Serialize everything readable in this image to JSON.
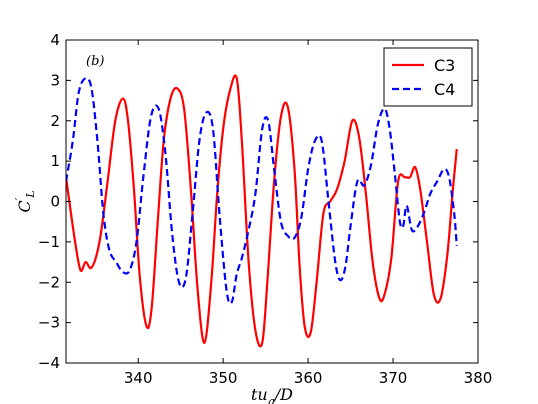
{
  "chart_data": {
    "type": "line",
    "panel_label": "(b)",
    "xlabel": "tu_g/D",
    "ylabel": "C'_L",
    "xlim": [
      331.5,
      380
    ],
    "ylim": [
      -4,
      4
    ],
    "xticks": [
      340,
      350,
      360,
      370,
      380
    ],
    "yticks": [
      -4,
      -3,
      -2,
      -1,
      0,
      1,
      2,
      3,
      4
    ],
    "grid": false,
    "legend": "top-right",
    "series": [
      {
        "name": "C3",
        "color": "#ff0000",
        "style": "solid",
        "x": [
          331.5,
          332.5,
          333.2,
          333.8,
          334.4,
          335.0,
          335.6,
          336.4,
          337.3,
          338.2,
          338.8,
          339.5,
          340.2,
          341.0,
          341.6,
          342.3,
          343.0,
          343.8,
          344.6,
          345.4,
          346.2,
          347.0,
          347.8,
          348.6,
          349.3,
          350.0,
          350.8,
          351.6,
          352.2,
          353.0,
          353.8,
          354.6,
          355.2,
          356.0,
          356.8,
          357.6,
          358.4,
          359.0,
          359.6,
          360.3,
          361.0,
          361.8,
          362.6,
          363.4,
          364.3,
          365.2,
          366.0,
          366.8,
          367.6,
          368.4,
          369.0,
          369.8,
          370.6,
          371.4,
          372.0,
          372.6,
          373.2,
          374.0,
          374.8,
          375.6,
          376.4,
          377.0,
          377.5
        ],
        "y": [
          0.6,
          -0.9,
          -1.7,
          -1.5,
          -1.65,
          -1.4,
          -0.8,
          0.5,
          2.0,
          2.55,
          2.0,
          0.3,
          -1.9,
          -3.1,
          -2.6,
          -0.5,
          1.5,
          2.55,
          2.8,
          2.3,
          0.3,
          -2.2,
          -3.5,
          -2.0,
          0.2,
          1.8,
          2.75,
          3.05,
          1.5,
          -1.5,
          -3.2,
          -3.5,
          -2.0,
          0.5,
          2.1,
          2.35,
          0.8,
          -1.6,
          -3.1,
          -3.25,
          -2.0,
          -0.3,
          0.0,
          0.3,
          1.0,
          2.0,
          1.6,
          0.2,
          -1.5,
          -2.4,
          -2.3,
          -1.4,
          0.5,
          0.6,
          0.6,
          0.85,
          0.3,
          -1.0,
          -2.3,
          -2.4,
          -1.3,
          0.2,
          1.3
        ]
      },
      {
        "name": "C4",
        "color": "#0000ff",
        "style": "dashed",
        "x": [
          331.5,
          332.3,
          333.0,
          333.8,
          334.5,
          335.2,
          335.9,
          336.6,
          337.4,
          338.2,
          339.0,
          339.8,
          340.6,
          341.5,
          342.4,
          343.2,
          344.0,
          344.8,
          345.6,
          346.4,
          347.2,
          348.0,
          348.8,
          349.6,
          350.4,
          351.0,
          351.6,
          352.2,
          353.0,
          353.8,
          354.6,
          355.3,
          356.0,
          356.8,
          357.6,
          358.4,
          359.2,
          360.0,
          360.8,
          361.6,
          362.4,
          363.2,
          363.8,
          364.4,
          365.0,
          365.8,
          366.6,
          367.4,
          368.2,
          369.0,
          369.6,
          370.2,
          370.8,
          371.2,
          371.6,
          372.2,
          372.8,
          373.6,
          374.4,
          375.2,
          376.0,
          376.6,
          377.2,
          377.5
        ],
        "y": [
          0.5,
          1.5,
          2.7,
          3.05,
          2.8,
          1.5,
          -0.3,
          -1.2,
          -1.5,
          -1.75,
          -1.7,
          -1.0,
          0.6,
          2.1,
          2.3,
          1.2,
          -0.8,
          -2.0,
          -1.9,
          -0.3,
          1.5,
          2.2,
          1.8,
          -0.4,
          -2.2,
          -2.5,
          -1.8,
          -1.4,
          -0.7,
          0.2,
          1.8,
          2.0,
          0.8,
          -0.5,
          -0.85,
          -0.9,
          -0.4,
          0.8,
          1.5,
          1.5,
          0.0,
          -1.5,
          -1.95,
          -1.6,
          -0.6,
          0.5,
          0.4,
          0.9,
          1.9,
          2.3,
          1.8,
          0.7,
          -0.5,
          -0.6,
          -0.1,
          -0.7,
          -0.65,
          -0.3,
          0.2,
          0.5,
          0.8,
          0.6,
          -0.3,
          -1.1
        ]
      }
    ]
  }
}
